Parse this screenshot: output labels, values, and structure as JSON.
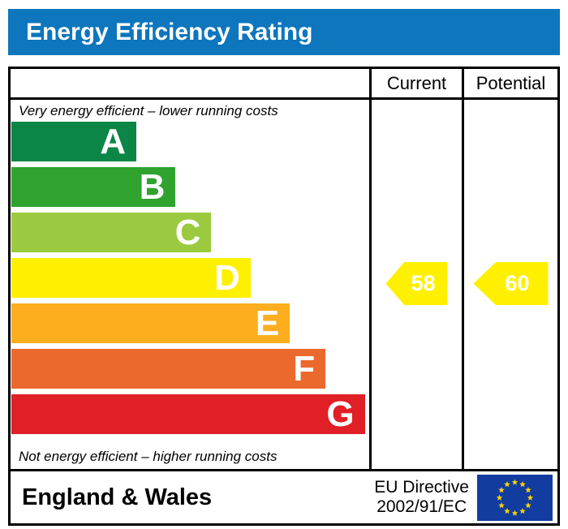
{
  "title": "Energy Efficiency Rating",
  "colors": {
    "title_bar": "#0D76BC",
    "border": "#000000",
    "arrow_yellow": "#FFF000",
    "eu_flag_blue": "#123CA0",
    "eu_flag_star": "#FFD500"
  },
  "table": {
    "columns": {
      "current": "Current",
      "potential": "Potential"
    },
    "top_note": "Very energy efficient – lower running costs",
    "bottom_note": "Not energy efficient – higher running costs"
  },
  "bands": [
    {
      "label": "A",
      "color": "#0B8647",
      "width_pct": 35
    },
    {
      "label": "B",
      "color": "#2FA32E",
      "width_pct": 46
    },
    {
      "label": "C",
      "color": "#9BC93F",
      "width_pct": 56
    },
    {
      "label": "D",
      "color": "#FFF000",
      "width_pct": 67
    },
    {
      "label": "E",
      "color": "#FCAE1E",
      "width_pct": 78
    },
    {
      "label": "F",
      "color": "#EC692E",
      "width_pct": 88
    },
    {
      "label": "G",
      "color": "#E01F26",
      "width_pct": 99
    }
  ],
  "ratings": {
    "current": {
      "value": "58",
      "band": "D",
      "arrow_color": "#FFF000"
    },
    "potential": {
      "value": "60",
      "band": "D",
      "arrow_color": "#FFF000"
    }
  },
  "footer": {
    "region": "England & Wales",
    "directive_line1": "EU Directive",
    "directive_line2": "2002/91/EC",
    "eu_flag_stars": 12
  },
  "chart_data": {
    "type": "bar",
    "title": "Energy Efficiency Rating",
    "categories": [
      "A",
      "B",
      "C",
      "D",
      "E",
      "F",
      "G"
    ],
    "values": [
      35,
      46,
      56,
      67,
      78,
      88,
      99
    ],
    "values_note": "bar width as % of rating scale column",
    "band_colors": [
      "#0B8647",
      "#2FA32E",
      "#9BC93F",
      "#FFF000",
      "#FCAE1E",
      "#EC692E",
      "#E01F26"
    ],
    "markers": [
      {
        "name": "Current",
        "value": 58,
        "band": "D"
      },
      {
        "name": "Potential",
        "value": 60,
        "band": "D"
      }
    ],
    "annotations": [
      "Very energy efficient – lower running costs",
      "Not energy efficient – higher running costs"
    ],
    "legend_position": "none",
    "footer": "England & Wales — EU Directive 2002/91/EC"
  }
}
